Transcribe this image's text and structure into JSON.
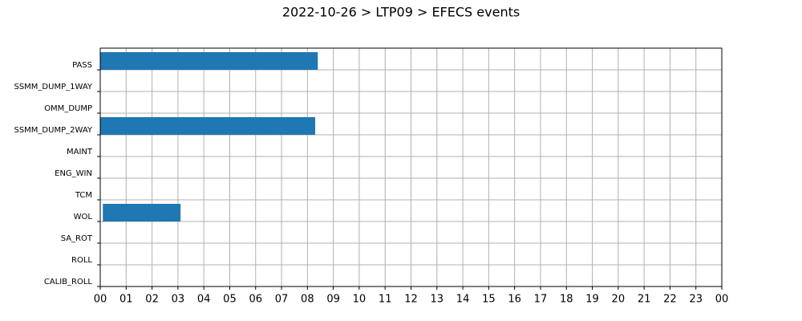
{
  "chart_data": {
    "type": "gantt",
    "title": "2022-10-26 > LTP09 > EFECS events",
    "categories": [
      "PASS",
      "SSMM_DUMP_1WAY",
      "OMM_DUMP",
      "SSMM_DUMP_2WAY",
      "MAINT",
      "ENG_WIN",
      "TCM",
      "WOL",
      "SA_ROT",
      "ROLL",
      "CALIB_ROLL"
    ],
    "start": [
      0,
      null,
      null,
      0,
      null,
      null,
      null,
      0.1,
      null,
      null,
      null
    ],
    "end": [
      8.4,
      null,
      null,
      8.3,
      null,
      null,
      null,
      3.1,
      null,
      null,
      null
    ],
    "color": "#1f77b4",
    "xlim": [
      0,
      24
    ],
    "xticks": [
      {
        "value": 0,
        "label": "00"
      },
      {
        "value": 1,
        "label": "01"
      },
      {
        "value": 2,
        "label": "02"
      },
      {
        "value": 3,
        "label": "03"
      },
      {
        "value": 4,
        "label": "04"
      },
      {
        "value": 5,
        "label": "05"
      },
      {
        "value": 6,
        "label": "06"
      },
      {
        "value": 7,
        "label": "07"
      },
      {
        "value": 8,
        "label": "08"
      },
      {
        "value": 9,
        "label": "09"
      },
      10,
      11,
      12,
      13,
      14,
      15,
      16,
      17,
      18,
      19,
      20,
      21,
      22,
      23,
      {
        "value": 24,
        "label": "00"
      }
    ],
    "grid": true
  }
}
